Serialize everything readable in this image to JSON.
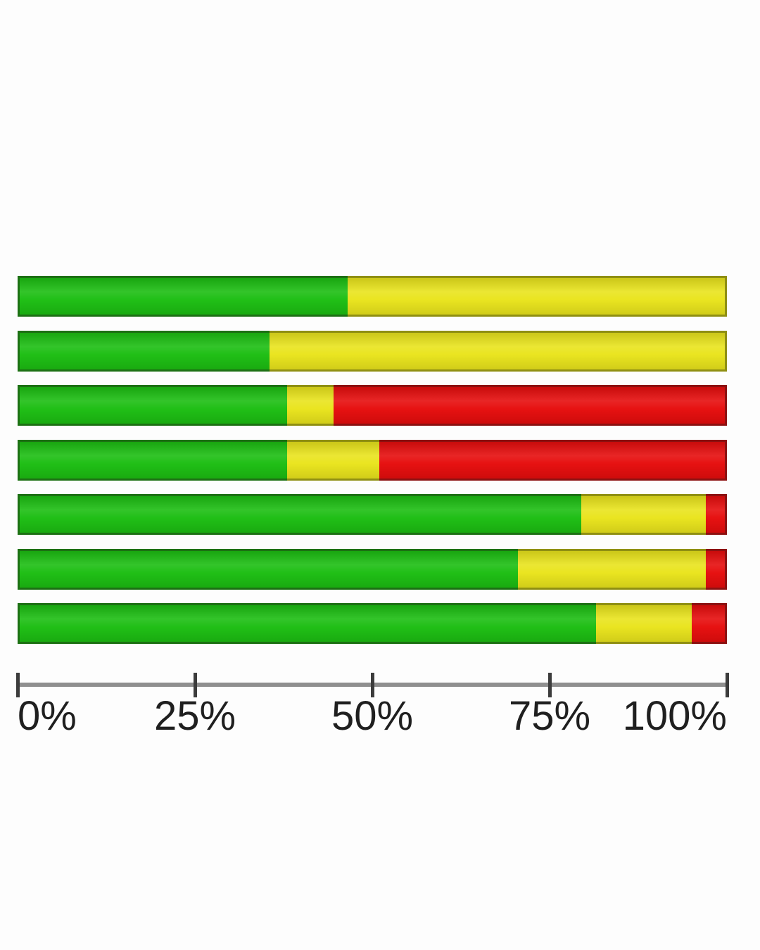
{
  "chart_data": {
    "type": "bar",
    "orientation": "horizontal",
    "stacked": true,
    "title": "",
    "xlabel": "",
    "ylabel": "",
    "x_axis": {
      "range": [
        0,
        100
      ],
      "tick_positions": [
        0,
        25,
        50,
        75,
        100
      ],
      "tick_labels": [
        "0%",
        "25%",
        "50%",
        "75%",
        "100%"
      ]
    },
    "grid": false,
    "legend": false,
    "series_order": [
      "green",
      "yellow",
      "red"
    ],
    "colors": {
      "green": "#1cbe12",
      "yellow": "#e9e41c",
      "red": "#e60d0d"
    },
    "border_colors": {
      "green": "#1d7014",
      "yellow": "#8f8f12",
      "red": "#8c1111"
    },
    "axis_line_color": "#8f8f8f",
    "tick_color": "#3c3c3c",
    "label_color": "#1f1f1f",
    "bars": [
      {
        "green": 46.5,
        "yellow": 53.5,
        "red": 0
      },
      {
        "green": 35.5,
        "yellow": 64.5,
        "red": 0
      },
      {
        "green": 38.0,
        "yellow": 6.5,
        "red": 55.5
      },
      {
        "green": 38.0,
        "yellow": 13.0,
        "red": 49.0
      },
      {
        "green": 79.5,
        "yellow": 17.5,
        "red": 3.0
      },
      {
        "green": 70.5,
        "yellow": 26.5,
        "red": 3.0
      },
      {
        "green": 81.5,
        "yellow": 13.5,
        "red": 5.0
      }
    ]
  }
}
